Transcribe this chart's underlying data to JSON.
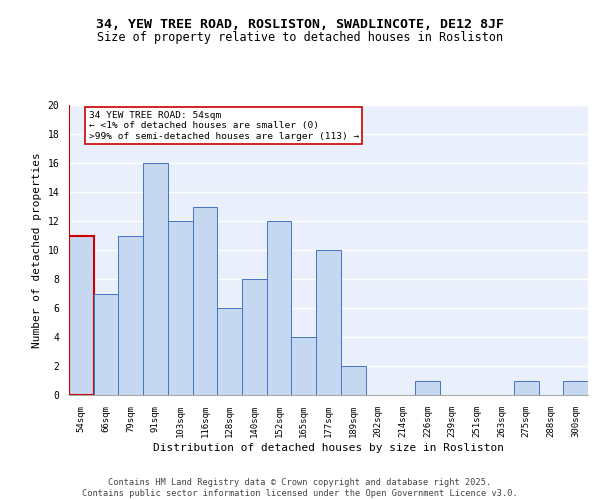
{
  "title1": "34, YEW TREE ROAD, ROSLISTON, SWADLINCOTE, DE12 8JF",
  "title2": "Size of property relative to detached houses in Rosliston",
  "xlabel": "Distribution of detached houses by size in Rosliston",
  "ylabel": "Number of detached properties",
  "categories": [
    "54sqm",
    "66sqm",
    "79sqm",
    "91sqm",
    "103sqm",
    "116sqm",
    "128sqm",
    "140sqm",
    "152sqm",
    "165sqm",
    "177sqm",
    "189sqm",
    "202sqm",
    "214sqm",
    "226sqm",
    "239sqm",
    "251sqm",
    "263sqm",
    "275sqm",
    "288sqm",
    "300sqm"
  ],
  "values": [
    11,
    7,
    11,
    16,
    12,
    13,
    6,
    8,
    12,
    4,
    10,
    2,
    0,
    0,
    1,
    0,
    0,
    0,
    1,
    0,
    1
  ],
  "bar_color": "#c5d8f0",
  "bar_edge_color": "#4472c4",
  "highlight_bar_index": 0,
  "highlight_bar_edge_color": "#cc0000",
  "annotation_box_text": "34 YEW TREE ROAD: 54sqm\n← <1% of detached houses are smaller (0)\n>99% of semi-detached houses are larger (113) →",
  "ylim": [
    0,
    20
  ],
  "yticks": [
    0,
    2,
    4,
    6,
    8,
    10,
    12,
    14,
    16,
    18,
    20
  ],
  "background_color": "#eaf0fb",
  "grid_color": "#ffffff",
  "footer_text": "Contains HM Land Registry data © Crown copyright and database right 2025.\nContains public sector information licensed under the Open Government Licence v3.0.",
  "title1_fontsize": 9.5,
  "title2_fontsize": 8.5,
  "xlabel_fontsize": 8,
  "ylabel_fontsize": 8,
  "annotation_fontsize": 6.8,
  "footer_fontsize": 6.2,
  "tick_fontsize": 6.5,
  "ytick_fontsize": 7
}
